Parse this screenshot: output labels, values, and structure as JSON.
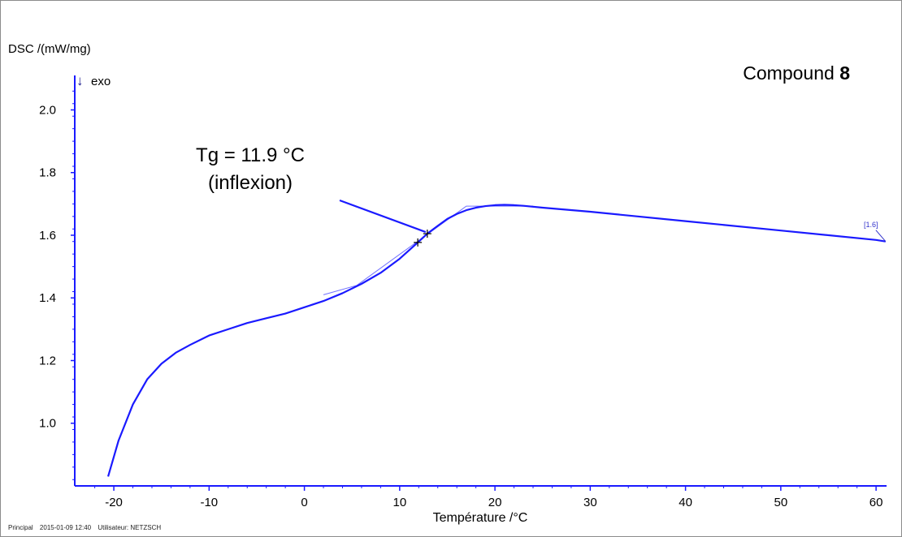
{
  "footer": {
    "principal": "Principal",
    "datetime": "2015-01-09 12:40",
    "user": "Utilisateur: NETZSCH"
  },
  "chart_data": {
    "type": "line",
    "title": "Compound",
    "title_bold": "8",
    "ylabel": "DSC /(mW/mg)",
    "exo_arrow": "↓",
    "exo_label": "exo",
    "xlabel": "Température /°C",
    "xlim": [
      -24.1,
      61.1
    ],
    "ylim": [
      0.8,
      2.11
    ],
    "xticks": [
      -20,
      -10,
      0,
      10,
      20,
      30,
      40,
      50,
      60
    ],
    "yticks": [
      1.0,
      1.2,
      1.4,
      1.6,
      1.8,
      2.0
    ],
    "ytick_labels": [
      "1.0",
      "1.2",
      "1.4",
      "1.6",
      "1.8",
      "2.0"
    ],
    "grid": false,
    "series": [
      {
        "color": "#1a1aff",
        "x": [
          -20.6,
          -19.5,
          -18,
          -16.5,
          -15,
          -13.5,
          -12,
          -10,
          -8,
          -6,
          -4,
          -2,
          0,
          2,
          4,
          6,
          8,
          10,
          11.9,
          12.9,
          14,
          15,
          16,
          17,
          18,
          19,
          20,
          21,
          22,
          23,
          25,
          30,
          40,
          50,
          60,
          61
        ],
        "y": [
          0.83,
          0.945,
          1.06,
          1.14,
          1.19,
          1.225,
          1.25,
          1.28,
          1.3,
          1.32,
          1.335,
          1.35,
          1.37,
          1.39,
          1.415,
          1.445,
          1.48,
          1.525,
          1.577,
          1.605,
          1.63,
          1.652,
          1.668,
          1.68,
          1.688,
          1.693,
          1.696,
          1.697,
          1.696,
          1.694,
          1.688,
          1.675,
          1.645,
          1.615,
          1.585,
          1.58
        ]
      }
    ],
    "tangent_lines": [
      {
        "x": [
          2,
          5.5,
          17,
          24
        ],
        "y": [
          1.41,
          1.44,
          1.693,
          1.693
        ]
      }
    ],
    "markers": [
      {
        "x": 11.9,
        "y": 1.577,
        "symbol": "+"
      },
      {
        "x": 12.9,
        "y": 1.605,
        "symbol": "+"
      }
    ],
    "annotations": [
      {
        "line1": "Tg = 11.9 °C",
        "line2": "(inflexion)",
        "pointer_x": 12.9,
        "pointer_y": 1.605
      }
    ],
    "end_label": "[1.6]"
  }
}
